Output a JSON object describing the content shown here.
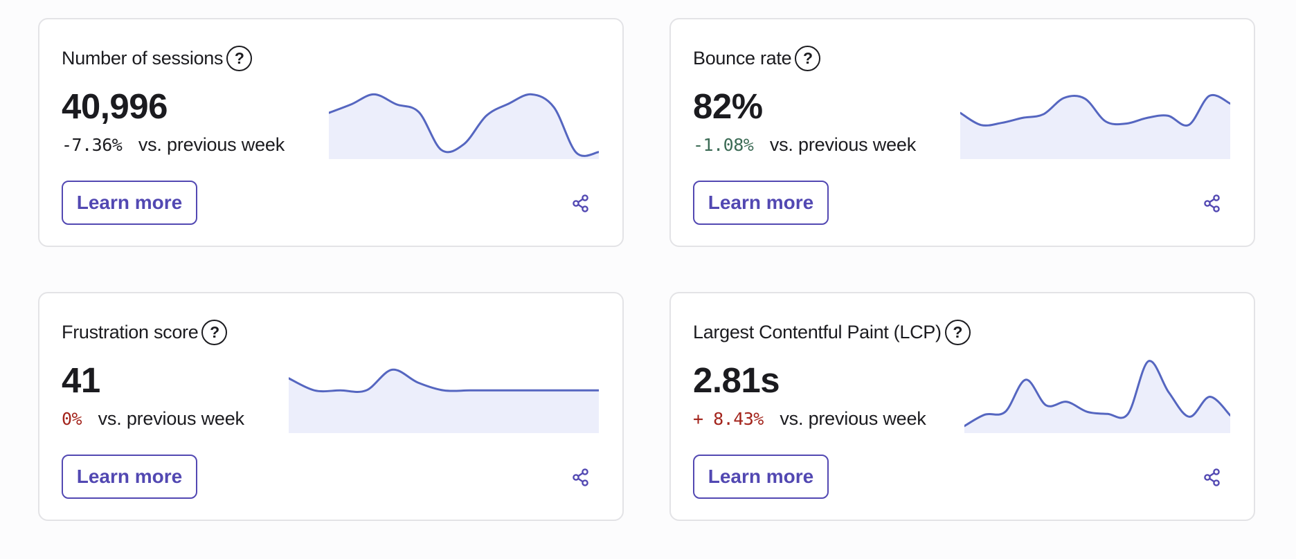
{
  "colors": {
    "accent": "#5248b2",
    "line": "#5566c0",
    "fill": "#eceefb",
    "positive_change": "#3c6b55",
    "negative_change": "#a3241c",
    "card_border": "#e3e3e6"
  },
  "cards": [
    {
      "title": "Number of sessions",
      "help_icon": "?",
      "value": "40,996",
      "change": "-7.36%",
      "change_tone": "neutral",
      "comparison": "vs. previous week",
      "button_label": "Learn more",
      "share_icon": "share-icon",
      "chart_data": {
        "type": "area",
        "values": [
          0.62,
          0.74,
          0.88,
          0.74,
          0.63,
          0.1,
          0.18,
          0.58,
          0.75,
          0.88,
          0.7,
          0.06,
          0.07
        ]
      }
    },
    {
      "title": "Bounce rate",
      "help_icon": "?",
      "value": "82%",
      "change": "-1.08%",
      "change_tone": "good",
      "comparison": "vs. previous week",
      "button_label": "Learn more",
      "share_icon": "share-icon",
      "chart_data": {
        "type": "area",
        "values": [
          0.62,
          0.45,
          0.48,
          0.55,
          0.6,
          0.83,
          0.82,
          0.5,
          0.47,
          0.55,
          0.58,
          0.45,
          0.86,
          0.75
        ]
      }
    },
    {
      "title": "Frustration score",
      "help_icon": "?",
      "value": "41",
      "change": "0%",
      "change_tone": "bad",
      "comparison": "vs. previous week",
      "button_label": "Learn more",
      "share_icon": "share-icon",
      "chart_data": {
        "type": "area",
        "values": [
          0.74,
          0.57,
          0.57,
          0.57,
          0.86,
          0.68,
          0.57,
          0.57,
          0.57,
          0.57,
          0.57,
          0.57,
          0.57
        ]
      }
    },
    {
      "title": "Largest Contentful Paint (LCP)",
      "help_icon": "?",
      "value": "2.81s",
      "change": "+ 8.43%",
      "change_tone": "bad",
      "comparison": "vs. previous week",
      "button_label": "Learn more",
      "share_icon": "share-icon",
      "chart_data": {
        "type": "area",
        "values": [
          0.07,
          0.23,
          0.27,
          0.72,
          0.36,
          0.41,
          0.27,
          0.24,
          0.24,
          0.98,
          0.54,
          0.2,
          0.48,
          0.22
        ]
      }
    }
  ]
}
